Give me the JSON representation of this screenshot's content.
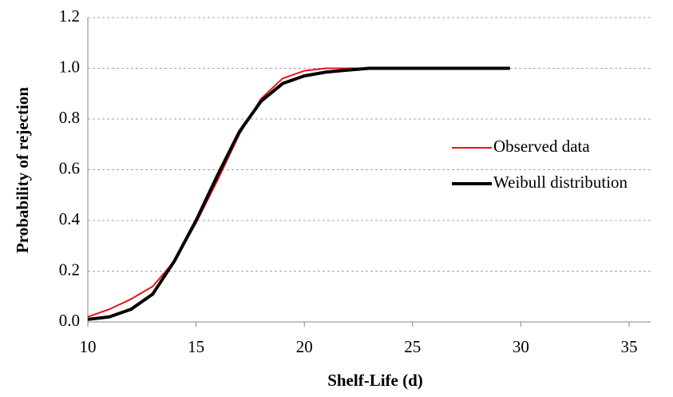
{
  "chart_data": {
    "type": "line",
    "xlabel": "Shelf-Life (d)",
    "ylabel": "Probability of rejection",
    "xlim": [
      10,
      35
    ],
    "xticks": [
      10,
      15,
      20,
      25,
      30,
      35
    ],
    "ylim": [
      0,
      1.2
    ],
    "yticks": [
      {
        "value": 0,
        "label": "0.0"
      },
      0.2,
      0.4,
      0.6,
      0.8,
      {
        "value": 1,
        "label": "1.0"
      },
      1.2
    ],
    "grid": true,
    "legend": "right",
    "series": [
      {
        "name": "Observed data",
        "color": "#e8141b",
        "width": 2,
        "x": [
          10,
          11,
          12,
          13,
          14,
          15,
          16,
          17,
          18,
          19,
          20,
          21,
          22.6
        ],
        "values": [
          0.02,
          0.05,
          0.09,
          0.14,
          0.24,
          0.39,
          0.56,
          0.74,
          0.88,
          0.96,
          0.99,
          1.0,
          1.0
        ]
      },
      {
        "name": "Weibull distribution",
        "color": "#000000",
        "width": 4,
        "x": [
          10,
          11,
          12,
          13,
          14,
          15,
          16,
          17,
          18,
          19,
          20,
          21,
          22,
          23,
          25,
          27,
          29.5
        ],
        "values": [
          0.01,
          0.02,
          0.05,
          0.11,
          0.24,
          0.4,
          0.58,
          0.75,
          0.87,
          0.94,
          0.97,
          0.985,
          0.993,
          1.0,
          1.0,
          1.0,
          1.0
        ]
      }
    ]
  }
}
